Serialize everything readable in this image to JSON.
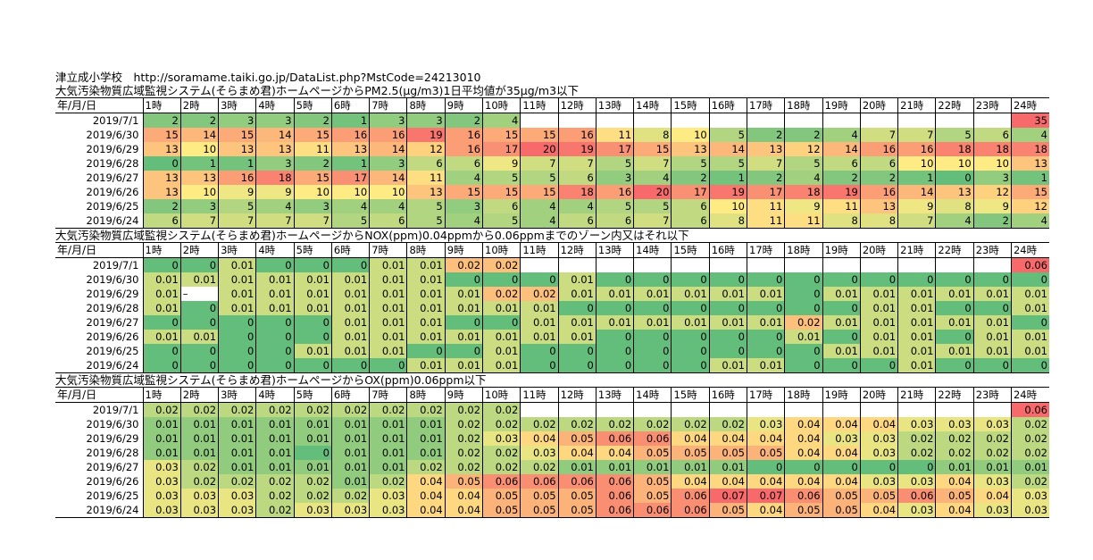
{
  "header": {
    "line1": "津立成小学校　http://soramame.taiki.go.jp/DataList.php?MstCode=24213010"
  },
  "hours_header": {
    "label": "年/月/日",
    "hours": [
      "1時",
      "2時",
      "3時",
      "4時",
      "5時",
      "6時",
      "7時",
      "8時",
      "9時",
      "10時",
      "11時",
      "12時",
      "13時",
      "14時",
      "15時",
      "16時",
      "17時",
      "18時",
      "19時",
      "20時",
      "21時",
      "22時",
      "23時",
      "24時"
    ]
  },
  "dates": [
    "2019/7/1",
    "2019/6/30",
    "2019/6/29",
    "2019/6/28",
    "2019/6/27",
    "2019/6/26",
    "2019/6/25",
    "2019/6/24"
  ],
  "sections": [
    {
      "id": "pm25",
      "title": "大気汚染物質広域監視システム(そらまめ君)ホームページからPM2.5(μg/m3)1日平均値が35μg/m3以下",
      "min": 0,
      "max": 20,
      "rows": [
        [
          "2",
          "2",
          "3",
          "3",
          "2",
          "1",
          "3",
          "3",
          "2",
          "4",
          "",
          "",
          "",
          "",
          "",
          "",
          "",
          "",
          "",
          "",
          "",
          "",
          "",
          "35"
        ],
        [
          "15",
          "14",
          "15",
          "14",
          "15",
          "16",
          "16",
          "19",
          "16",
          "15",
          "15",
          "16",
          "11",
          "8",
          "10",
          "5",
          "2",
          "2",
          "4",
          "7",
          "7",
          "5",
          "6",
          "4"
        ],
        [
          "13",
          "10",
          "13",
          "13",
          "11",
          "13",
          "14",
          "12",
          "16",
          "17",
          "20",
          "19",
          "17",
          "15",
          "13",
          "14",
          "13",
          "12",
          "14",
          "16",
          "16",
          "18",
          "18",
          "18"
        ],
        [
          "0",
          "1",
          "1",
          "3",
          "2",
          "1",
          "3",
          "6",
          "6",
          "9",
          "7",
          "7",
          "5",
          "7",
          "5",
          "5",
          "7",
          "5",
          "6",
          "6",
          "10",
          "10",
          "10",
          "13"
        ],
        [
          "13",
          "13",
          "16",
          "18",
          "15",
          "17",
          "14",
          "11",
          "4",
          "5",
          "5",
          "6",
          "3",
          "4",
          "2",
          "1",
          "2",
          "4",
          "2",
          "2",
          "1",
          "0",
          "3",
          "1"
        ],
        [
          "13",
          "10",
          "9",
          "9",
          "10",
          "10",
          "10",
          "13",
          "15",
          "15",
          "15",
          "18",
          "16",
          "20",
          "17",
          "19",
          "17",
          "18",
          "19",
          "16",
          "14",
          "13",
          "12",
          "15"
        ],
        [
          "2",
          "3",
          "5",
          "4",
          "3",
          "4",
          "4",
          "5",
          "3",
          "6",
          "4",
          "4",
          "5",
          "5",
          "6",
          "10",
          "11",
          "9",
          "11",
          "13",
          "9",
          "8",
          "9",
          "12"
        ],
        [
          "6",
          "7",
          "7",
          "7",
          "7",
          "5",
          "6",
          "5",
          "4",
          "5",
          "4",
          "6",
          "6",
          "7",
          "6",
          "8",
          "11",
          "11",
          "8",
          "8",
          "7",
          "4",
          "2",
          "4"
        ]
      ]
    },
    {
      "id": "nox",
      "title": "大気汚染物質広域監視システム(そらまめ君)ホームページからNOX(ppm)0.04ppmから0.06ppmまでのゾーン内又はそれ以下",
      "min": 0,
      "max": 0.03,
      "rows": [
        [
          "0",
          "0",
          "0.01",
          "0",
          "0",
          "0",
          "0.01",
          "0.01",
          "0.02",
          "0.02",
          "",
          "",
          "",
          "",
          "",
          "",
          "",
          "",
          "",
          "",
          "",
          "",
          "",
          "0.06"
        ],
        [
          "0.01",
          "0.01",
          "0.01",
          "0.01",
          "0.01",
          "0.01",
          "0.01",
          "0.01",
          "0",
          "0",
          "0",
          "0.01",
          "0",
          "0",
          "0",
          "0",
          "0",
          "0",
          "0",
          "0",
          "0",
          "0",
          "0",
          "0"
        ],
        [
          "0.01",
          "–",
          "0.01",
          "0.01",
          "0.01",
          "0.01",
          "0.01",
          "0.01",
          "0.01",
          "0.02",
          "0.02",
          "0.01",
          "0.01",
          "0.01",
          "0.01",
          "0.01",
          "0.01",
          "0",
          "0.01",
          "0.01",
          "0.01",
          "0.01",
          "0.01",
          "0.01"
        ],
        [
          "0.01",
          "0",
          "0.01",
          "0.01",
          "0.01",
          "0.01",
          "0.01",
          "0.01",
          "0.01",
          "0.01",
          "0.01",
          "0",
          "0",
          "0",
          "0",
          "0",
          "0",
          "0",
          "0",
          "0.01",
          "0.01",
          "0",
          "0",
          "0.01"
        ],
        [
          "0",
          "0",
          "0",
          "0",
          "0",
          "0.01",
          "0.01",
          "0.01",
          "0",
          "0",
          "0.01",
          "0.01",
          "0.01",
          "0.01",
          "0.01",
          "0.01",
          "0.01",
          "0.02",
          "0.01",
          "0.01",
          "0.01",
          "0.01",
          "0.01",
          "0"
        ],
        [
          "0.01",
          "0.01",
          "0",
          "0",
          "0",
          "0.01",
          "0.01",
          "0.01",
          "0.01",
          "0.01",
          "0.01",
          "0.01",
          "0",
          "0",
          "0",
          "0",
          "0",
          "0.01",
          "0",
          "0.01",
          "0.01",
          "0",
          "0.01",
          "0.01"
        ],
        [
          "0",
          "0",
          "0",
          "0",
          "0.01",
          "0.01",
          "0.01",
          "0",
          "0",
          "0.01",
          "0",
          "0",
          "0",
          "0",
          "0",
          "0",
          "0",
          "0",
          "0.01",
          "0.01",
          "0.01",
          "0.01",
          "0.01",
          "0.01"
        ],
        [
          "0",
          "0",
          "0",
          "0",
          "0",
          "0",
          "0",
          "0.01",
          "0.01",
          "0.01",
          "0",
          "0",
          "0",
          "0",
          "0",
          "0.01",
          "0.01",
          "0",
          "0",
          "0",
          "0.01",
          "0",
          "0",
          "0"
        ]
      ]
    },
    {
      "id": "ox",
      "title": "大気汚染物質広域監視システム(そらまめ君)ホームページからOX(ppm)0.06ppm以下",
      "min": 0,
      "max": 0.07,
      "rows": [
        [
          "0.02",
          "0.02",
          "0.02",
          "0.02",
          "0.02",
          "0.02",
          "0.02",
          "0.02",
          "0.02",
          "0.02",
          "",
          "",
          "",
          "",
          "",
          "",
          "",
          "",
          "",
          "",
          "",
          "",
          "",
          "0.06"
        ],
        [
          "0.01",
          "0.01",
          "0.01",
          "0.01",
          "0.01",
          "0.01",
          "0.01",
          "0.01",
          "0.02",
          "0.02",
          "0.02",
          "0.02",
          "0.02",
          "0.02",
          "0.02",
          "0.02",
          "0.03",
          "0.04",
          "0.04",
          "0.04",
          "0.03",
          "0.03",
          "0.03",
          "0.02"
        ],
        [
          "0.01",
          "0.01",
          "0.01",
          "0.01",
          "0.01",
          "0.01",
          "0.01",
          "0.01",
          "0.02",
          "0.03",
          "0.04",
          "0.05",
          "0.06",
          "0.06",
          "0.04",
          "0.04",
          "0.04",
          "0.04",
          "0.03",
          "0.03",
          "0.02",
          "0.02",
          "0.02",
          "0.02"
        ],
        [
          "0.01",
          "0.01",
          "0.01",
          "0.01",
          "0",
          "0.01",
          "0.01",
          "0.01",
          "0.02",
          "0.02",
          "0.03",
          "0.04",
          "0.04",
          "0.05",
          "0.05",
          "0.05",
          "0.05",
          "0.04",
          "0.04",
          "0.03",
          "0.02",
          "0.02",
          "0.02",
          "0.02"
        ],
        [
          "0.03",
          "0.02",
          "0.01",
          "0.01",
          "0.01",
          "0.01",
          "0.01",
          "0.02",
          "0.02",
          "0.02",
          "0.02",
          "0.01",
          "0.01",
          "0.01",
          "0.01",
          "0.01",
          "0",
          "0",
          "0",
          "0",
          "0",
          "0.01",
          "0.01",
          "0.01"
        ],
        [
          "0.03",
          "0.02",
          "0.02",
          "0.02",
          "0.02",
          "0.01",
          "0.02",
          "0.04",
          "0.05",
          "0.06",
          "0.06",
          "0.06",
          "0.06",
          "0.05",
          "0.04",
          "0.04",
          "0.04",
          "0.04",
          "0.04",
          "0.03",
          "0.03",
          "0.04",
          "0.03",
          "0.02"
        ],
        [
          "0.03",
          "0.03",
          "0.03",
          "0.02",
          "0.02",
          "0.02",
          "0.03",
          "0.04",
          "0.04",
          "0.05",
          "0.05",
          "0.05",
          "0.06",
          "0.05",
          "0.06",
          "0.07",
          "0.07",
          "0.06",
          "0.05",
          "0.05",
          "0.06",
          "0.05",
          "0.04",
          "0.03"
        ],
        [
          "0.03",
          "0.03",
          "0.03",
          "0.02",
          "0.03",
          "0.03",
          "0.03",
          "0.04",
          "0.04",
          "0.05",
          "0.05",
          "0.05",
          "0.06",
          "0.06",
          "0.06",
          "0.05",
          "0.04",
          "0.05",
          "0.05",
          "0.04",
          "0.03",
          "0.04",
          "0.03",
          "0.03"
        ]
      ]
    }
  ]
}
